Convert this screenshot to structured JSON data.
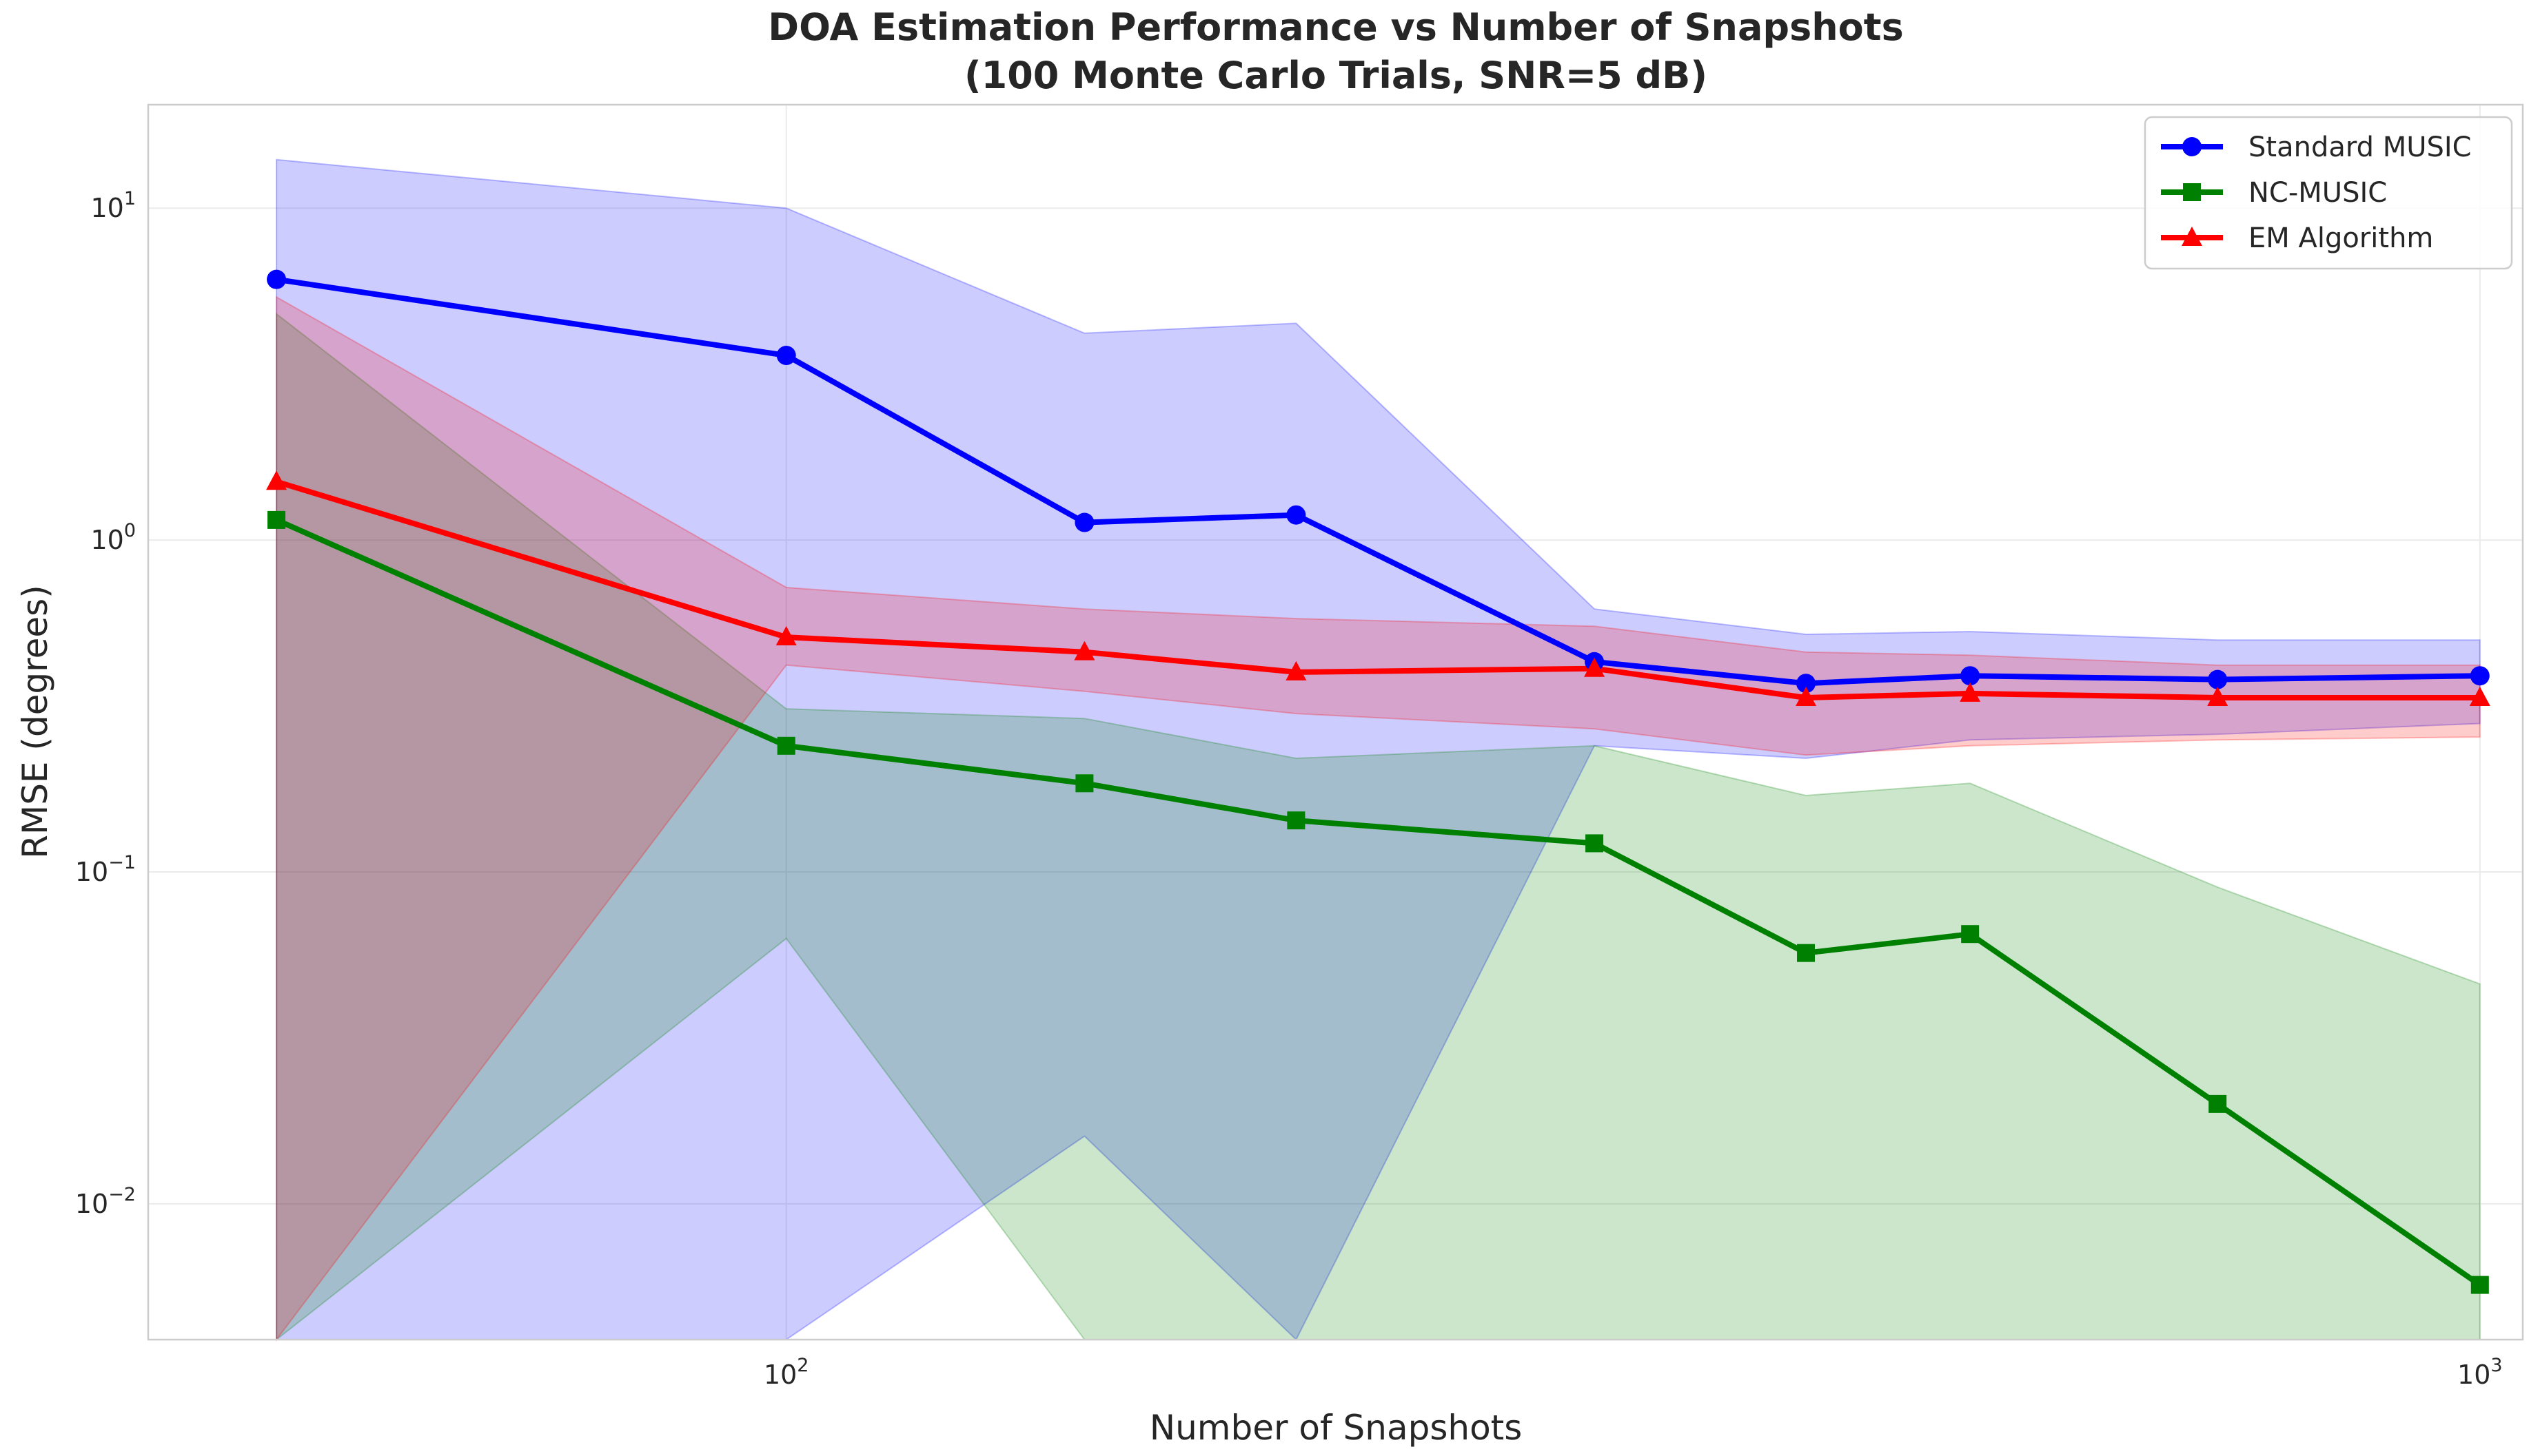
{
  "chart_data": {
    "type": "line",
    "title_line1": "DOA Estimation Performance vs Number of Snapshots",
    "title_line2": "(100 Monte Carlo Trials, SNR=5 dB)",
    "xlabel": "Number of Snapshots",
    "ylabel": "RMSE (degrees)",
    "xscale": "log",
    "yscale": "log",
    "xlim": [
      42,
      1060
    ],
    "ylim": [
      0.0039,
      20.5
    ],
    "x": [
      50,
      100,
      150,
      200,
      300,
      400,
      500,
      700,
      1000
    ],
    "xticks": [
      {
        "value": 100,
        "base": "10",
        "exp": "2"
      },
      {
        "value": 1000,
        "base": "10",
        "exp": "3"
      }
    ],
    "yticks": [
      {
        "value": 0.01,
        "base": "10",
        "exp": "−2"
      },
      {
        "value": 0.1,
        "base": "10",
        "exp": "−1"
      },
      {
        "value": 1,
        "base": "10",
        "exp": "0"
      },
      {
        "value": 10,
        "base": "10",
        "exp": "1"
      }
    ],
    "grid": true,
    "legend_position": "top-right",
    "series": [
      {
        "name": "Standard MUSIC",
        "color": "#0000ff",
        "marker": "circle",
        "values": [
          6.1,
          3.6,
          1.13,
          1.19,
          0.43,
          0.37,
          0.39,
          0.38,
          0.39
        ],
        "band_upper": [
          14.0,
          10.0,
          4.2,
          4.5,
          0.62,
          0.52,
          0.53,
          0.5,
          0.5
        ],
        "band_lower": [
          0.0039,
          0.0039,
          0.016,
          0.0039,
          0.24,
          0.22,
          0.25,
          0.26,
          0.28
        ]
      },
      {
        "name": "NC-MUSIC",
        "color": "#008000",
        "marker": "square",
        "values": [
          1.15,
          0.24,
          0.185,
          0.143,
          0.122,
          0.057,
          0.065,
          0.02,
          0.0057
        ],
        "band_upper": [
          4.8,
          0.31,
          0.29,
          0.22,
          0.24,
          0.17,
          0.185,
          0.09,
          0.046
        ],
        "band_lower": [
          0.0039,
          0.063,
          0.0039,
          0.0039,
          0.0039,
          0.0039,
          0.0039,
          0.0039,
          0.0039
        ]
      },
      {
        "name": "EM Algorithm",
        "color": "#ff0000",
        "marker": "triangle",
        "values": [
          1.5,
          0.51,
          0.46,
          0.4,
          0.41,
          0.335,
          0.345,
          0.335,
          0.335
        ],
        "band_upper": [
          5.4,
          0.72,
          0.62,
          0.58,
          0.55,
          0.46,
          0.45,
          0.42,
          0.42
        ],
        "band_lower": [
          0.0039,
          0.42,
          0.35,
          0.3,
          0.27,
          0.225,
          0.24,
          0.25,
          0.255
        ]
      }
    ]
  }
}
